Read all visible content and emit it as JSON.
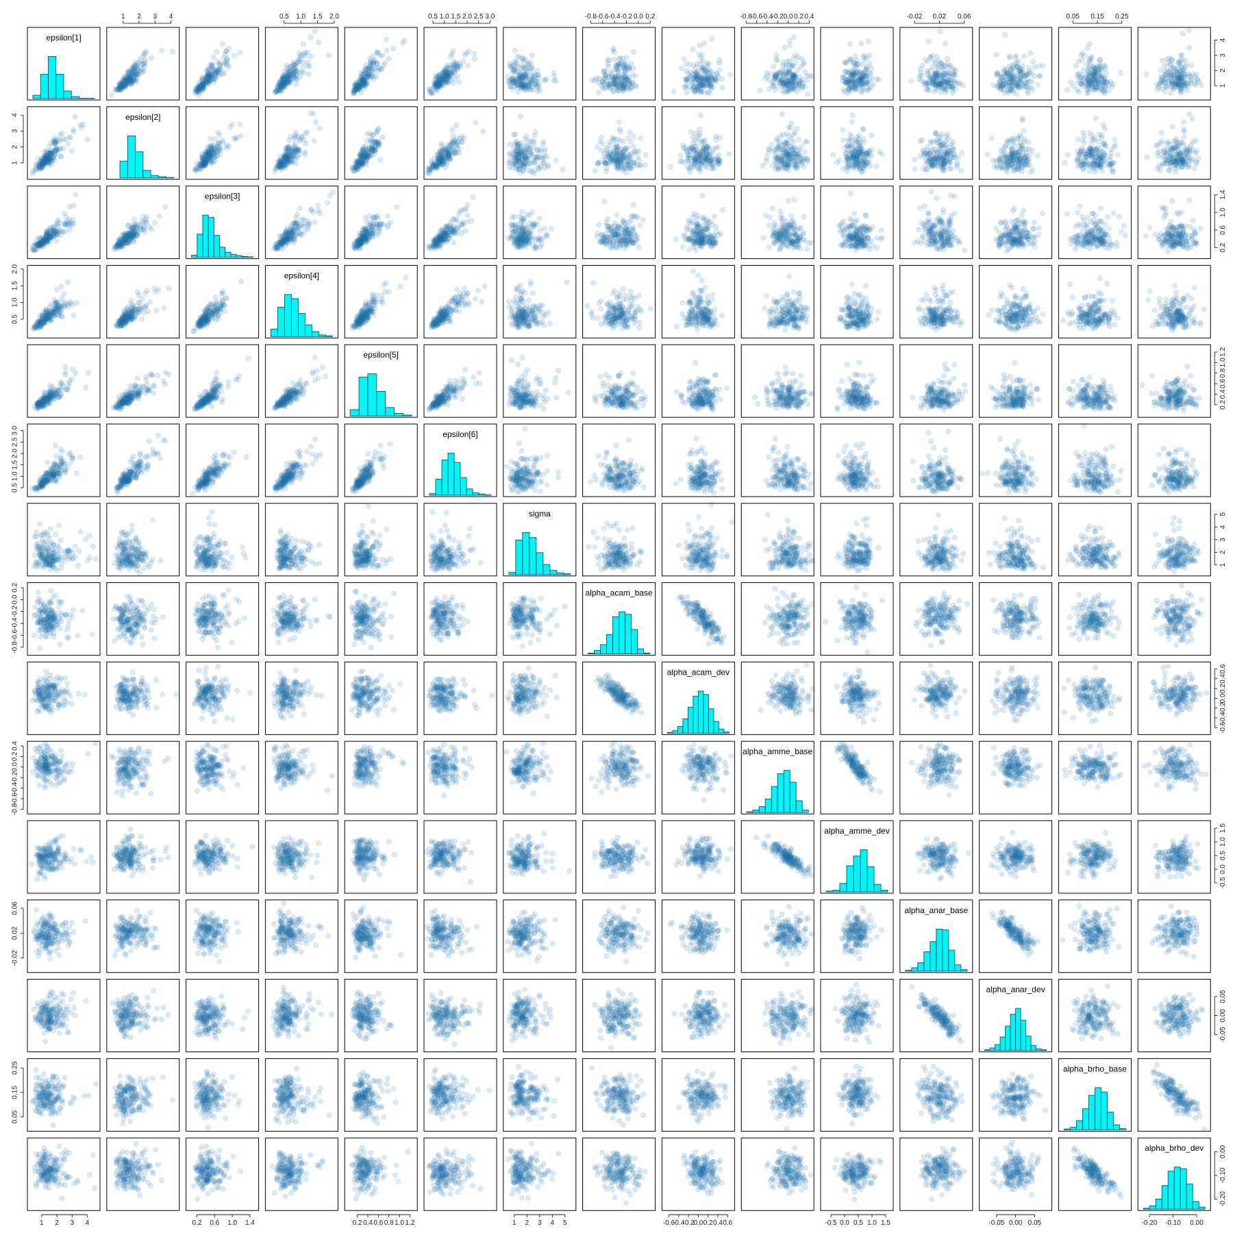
{
  "chart_data": {
    "type": "pairs",
    "colors": {
      "hist_fill": "#00f5f5",
      "hist_border": "#0b4f7a",
      "point": "#1f6ea8",
      "frame": "#000000"
    },
    "variables": [
      {
        "name": "epsilon[1]",
        "range": [
          0.2,
          4.7
        ],
        "ticks": [
          1,
          2,
          3,
          4
        ],
        "tick_labels": [
          "1",
          "2",
          "3",
          "4"
        ],
        "mean": 1.45,
        "sd": 0.6,
        "hist": [
          0.08,
          0.58,
          1.0,
          0.58,
          0.18,
          0.05,
          0.01,
          0.01
        ]
      },
      {
        "name": "epsilon[2]",
        "range": [
          0.1,
          4.4
        ],
        "ticks": [
          1,
          2,
          3,
          4
        ],
        "tick_labels": [
          "1",
          "2",
          "3",
          "4"
        ],
        "mean": 1.35,
        "sd": 0.55,
        "hist": [
          0.0,
          0.4,
          1.0,
          0.62,
          0.18,
          0.06,
          0.03,
          0.01
        ]
      },
      {
        "name": "epsilon[3]",
        "range": [
          0.0,
          1.55
        ],
        "ticks": [
          0.2,
          0.6,
          1.0,
          1.4
        ],
        "tick_labels": [
          "0.2",
          "0.6",
          "1.0",
          "1.4"
        ],
        "mean": 0.45,
        "sd": 0.18,
        "hist": [
          0.05,
          0.55,
          1.0,
          0.95,
          0.52,
          0.24,
          0.12,
          0.07,
          0.04,
          0.02,
          0.01
        ]
      },
      {
        "name": "epsilon[4]",
        "range": [
          0.0,
          2.05
        ],
        "ticks": [
          0.5,
          1.0,
          1.5,
          2.0
        ],
        "tick_labels": [
          "0.5",
          "1.0",
          "1.5",
          "2.0"
        ],
        "mean": 0.6,
        "sd": 0.25,
        "hist": [
          0.18,
          0.7,
          1.0,
          0.9,
          0.55,
          0.28,
          0.12,
          0.04,
          0.02
        ]
      },
      {
        "name": "epsilon[5]",
        "range": [
          0.0,
          1.3
        ],
        "ticks": [
          0.2,
          0.4,
          0.6,
          0.8,
          1.0,
          1.2
        ],
        "tick_labels": [
          "0.2",
          "0.4",
          "0.6",
          "0.8",
          "1.0",
          "1.2"
        ],
        "mean": 0.33,
        "sd": 0.13,
        "hist": [
          0.15,
          0.92,
          1.0,
          0.58,
          0.2,
          0.06,
          0.02
        ]
      },
      {
        "name": "epsilon[6]",
        "range": [
          0.2,
          3.2
        ],
        "ticks": [
          0.5,
          1.0,
          1.5,
          2.0,
          2.5,
          3.0
        ],
        "tick_labels": [
          "0.5",
          "1.0",
          "1.5",
          "2.0",
          "2.5",
          "3.0"
        ],
        "mean": 0.95,
        "sd": 0.38,
        "hist": [
          0.04,
          0.38,
          0.84,
          1.0,
          0.78,
          0.42,
          0.15,
          0.06,
          0.03,
          0.01
        ]
      },
      {
        "name": "sigma",
        "range": [
          0.3,
          5.7
        ],
        "ticks": [
          1,
          2,
          3,
          4,
          5
        ],
        "tick_labels": [
          "1",
          "2",
          "3",
          "4",
          "5"
        ],
        "mean": 1.7,
        "sd": 0.75,
        "hist": [
          0.05,
          0.82,
          1.0,
          0.88,
          0.52,
          0.24,
          0.1,
          0.04,
          0.02
        ]
      },
      {
        "name": "alpha_acam_base",
        "range": [
          -0.9,
          0.25
        ],
        "ticks": [
          -0.8,
          -0.6,
          -0.4,
          -0.2,
          0.0,
          0.2
        ],
        "tick_labels": [
          "-0.8",
          "-0.6",
          "-0.4",
          "-0.2",
          "0.0",
          "0.2"
        ],
        "mean": -0.32,
        "sd": 0.17,
        "hist": [
          0.02,
          0.08,
          0.22,
          0.46,
          0.88,
          1.0,
          0.94,
          0.58,
          0.12,
          0.02
        ]
      },
      {
        "name": "alpha_acam_dev",
        "range": [
          -0.7,
          0.7
        ],
        "ticks": [
          -0.6,
          -0.4,
          -0.2,
          0.0,
          0.2,
          0.4,
          0.6
        ],
        "tick_labels": [
          "-0.6",
          "-0.4",
          "-0.2",
          "0.0",
          "0.2",
          "0.4",
          "0.6"
        ],
        "mean": 0.08,
        "sd": 0.18,
        "hist": [
          0.02,
          0.06,
          0.16,
          0.34,
          0.62,
          0.88,
          1.0,
          0.92,
          0.58,
          0.28,
          0.1,
          0.03
        ]
      },
      {
        "name": "alpha_amme_base",
        "range": [
          -0.85,
          0.45
        ],
        "ticks": [
          -0.8,
          -0.6,
          -0.4,
          -0.2,
          0.0,
          0.2,
          0.4
        ],
        "tick_labels": [
          "-0.8",
          "-0.6",
          "-0.4",
          "-0.2",
          "0.0",
          "0.2",
          "0.4"
        ],
        "mean": 0.0,
        "sd": 0.18,
        "hist": [
          0.02,
          0.06,
          0.14,
          0.32,
          0.62,
          0.92,
          1.0,
          0.72,
          0.28,
          0.06
        ]
      },
      {
        "name": "alpha_amme_dev",
        "range": [
          -0.8,
          1.7
        ],
        "ticks": [
          -0.5,
          0.0,
          0.5,
          1.0,
          1.5
        ],
        "tick_labels": [
          "-0.5",
          "0.0",
          "0.5",
          "1.0",
          "1.5"
        ],
        "mean": 0.45,
        "sd": 0.28,
        "hist": [
          0.02,
          0.04,
          0.2,
          0.62,
          0.85,
          1.0,
          0.6,
          0.18,
          0.04
        ]
      },
      {
        "name": "alpha_anar_base",
        "range": [
          -0.04,
          0.07
        ],
        "ticks": [
          -0.02,
          0.02,
          0.06
        ],
        "tick_labels": [
          "-0.02",
          "0.02",
          "0.06"
        ],
        "mean": 0.02,
        "sd": 0.015,
        "hist": [
          0.02,
          0.08,
          0.2,
          0.46,
          0.7,
          1.0,
          0.98,
          0.5,
          0.15,
          0.04
        ]
      },
      {
        "name": "alpha_anar_dev",
        "range": [
          -0.09,
          0.09
        ],
        "ticks": [
          -0.05,
          0.0,
          0.05
        ],
        "tick_labels": [
          "-0.05",
          "0.00",
          "0.05"
        ],
        "mean": 0.0,
        "sd": 0.025,
        "hist": [
          0.02,
          0.06,
          0.14,
          0.32,
          0.58,
          0.86,
          1.0,
          0.72,
          0.34,
          0.12,
          0.04,
          0.02
        ]
      },
      {
        "name": "alpha_brho_base",
        "range": [
          0.0,
          0.28
        ],
        "ticks": [
          0.05,
          0.15,
          0.25
        ],
        "tick_labels": [
          "0.05",
          "0.15",
          "0.25"
        ],
        "mean": 0.135,
        "sd": 0.04,
        "hist": [
          0.02,
          0.06,
          0.22,
          0.5,
          0.82,
          1.0,
          0.9,
          0.42,
          0.12,
          0.03
        ]
      },
      {
        "name": "alpha_brho_dev",
        "range": [
          -0.24,
          0.05
        ],
        "ticks": [
          -0.2,
          -0.1,
          0.0
        ],
        "tick_labels": [
          "-0.20",
          "-0.10",
          "0.00"
        ],
        "mean": -0.085,
        "sd": 0.04,
        "hist": [
          0.02,
          0.08,
          0.24,
          0.56,
          0.9,
          1.0,
          0.96,
          0.6,
          0.18,
          0.05
        ]
      }
    ],
    "correlated_pairs": [
      {
        "a": 0,
        "b": 1,
        "rho": 0.86
      },
      {
        "a": 0,
        "b": 2,
        "rho": 0.86
      },
      {
        "a": 0,
        "b": 3,
        "rho": 0.86
      },
      {
        "a": 0,
        "b": 4,
        "rho": 0.86
      },
      {
        "a": 0,
        "b": 5,
        "rho": 0.86
      },
      {
        "a": 1,
        "b": 2,
        "rho": 0.86
      },
      {
        "a": 1,
        "b": 3,
        "rho": 0.86
      },
      {
        "a": 1,
        "b": 4,
        "rho": 0.86
      },
      {
        "a": 1,
        "b": 5,
        "rho": 0.86
      },
      {
        "a": 2,
        "b": 3,
        "rho": 0.86
      },
      {
        "a": 2,
        "b": 4,
        "rho": 0.86
      },
      {
        "a": 2,
        "b": 5,
        "rho": 0.86
      },
      {
        "a": 3,
        "b": 4,
        "rho": 0.86
      },
      {
        "a": 3,
        "b": 5,
        "rho": 0.86
      },
      {
        "a": 4,
        "b": 5,
        "rho": 0.86
      },
      {
        "a": 7,
        "b": 8,
        "rho": -0.85
      },
      {
        "a": 9,
        "b": 10,
        "rho": -0.85
      },
      {
        "a": 11,
        "b": 12,
        "rho": -0.85
      },
      {
        "a": 13,
        "b": 14,
        "rho": -0.85
      }
    ],
    "points_per_panel": 170,
    "legend": "none",
    "grid": false
  }
}
